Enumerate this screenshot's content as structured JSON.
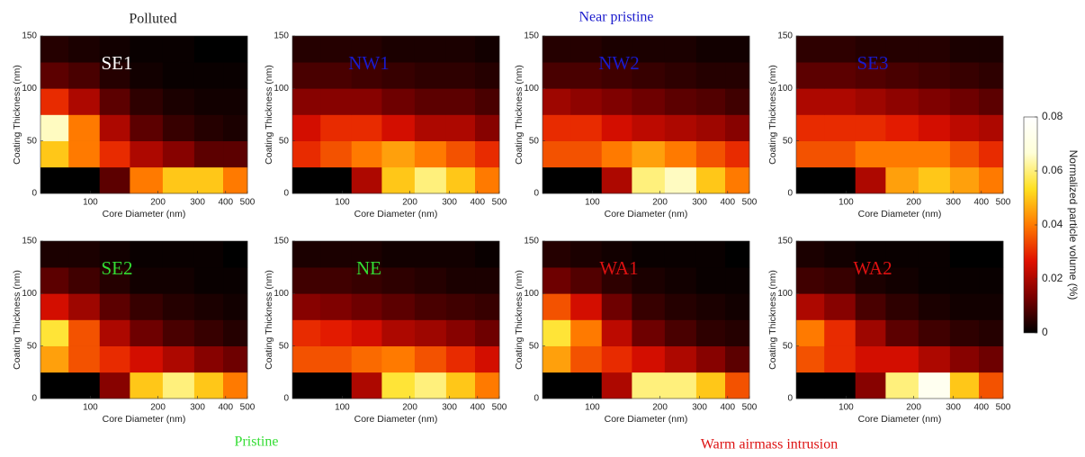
{
  "annotations": [
    {
      "text": "Polluted",
      "color": "#222222"
    },
    {
      "text": "Near pristine",
      "color": "#1a1acc"
    },
    {
      "text": "Pristine",
      "color": "#33dd33"
    },
    {
      "text": "Warm airmass intrusion",
      "color": "#dd1111"
    }
  ],
  "colorbar": {
    "label": "Normalized particle volume (%)",
    "lim": [
      0,
      0.08
    ],
    "ticks": [
      0,
      0.02,
      0.04,
      0.06,
      0.08
    ],
    "colormap": [
      "#000000",
      "#7a0000",
      "#e01000",
      "#ff7a00",
      "#ffe020",
      "#ffffd8",
      "#ffffff"
    ]
  },
  "chart_data": [
    {
      "type": "heatmap",
      "title": "SE1",
      "title_color": "#ffffff",
      "xlabel": "Core Diameter (nm)",
      "ylabel": "Coating Thickness (nm)",
      "xscale": "log",
      "xlim": [
        60,
        500
      ],
      "ylim": [
        0,
        150
      ],
      "xticks": [
        100,
        200,
        300,
        400,
        500
      ],
      "yticks": [
        0,
        50,
        100,
        150
      ],
      "x_edges": [
        60,
        80,
        110,
        150,
        210,
        290,
        390,
        500
      ],
      "y_edges": [
        0,
        25,
        50,
        75,
        100,
        125,
        150
      ],
      "z": [
        [
          0,
          0,
          0.01,
          0.04,
          0.05,
          0.05,
          0.04
        ],
        [
          0.05,
          0.04,
          0.03,
          0.02,
          0.015,
          0.01,
          0.01
        ],
        [
          0.065,
          0.04,
          0.02,
          0.01,
          0.006,
          0.004,
          0.003
        ],
        [
          0.03,
          0.02,
          0.01,
          0.005,
          0.003,
          0.002,
          0.002
        ],
        [
          0.01,
          0.008,
          0.004,
          0.002,
          0.001,
          0.001,
          0.001
        ],
        [
          0.004,
          0.003,
          0.002,
          0.001,
          0.001,
          0,
          0
        ]
      ]
    },
    {
      "type": "heatmap",
      "title": "NW1",
      "title_color": "#1a1acc",
      "xlabel": "Core Diameter (nm)",
      "ylabel": "Coating Thickness (nm)",
      "xscale": "log",
      "xlim": [
        60,
        500
      ],
      "ylim": [
        0,
        150
      ],
      "xticks": [
        100,
        200,
        300,
        400,
        500
      ],
      "yticks": [
        0,
        50,
        100,
        150
      ],
      "x_edges": [
        60,
        80,
        110,
        150,
        210,
        290,
        390,
        500
      ],
      "y_edges": [
        0,
        25,
        50,
        75,
        100,
        125,
        150
      ],
      "z": [
        [
          0,
          0,
          0.02,
          0.05,
          0.06,
          0.05,
          0.04
        ],
        [
          0.03,
          0.035,
          0.04,
          0.045,
          0.04,
          0.035,
          0.03
        ],
        [
          0.025,
          0.03,
          0.03,
          0.025,
          0.02,
          0.02,
          0.015
        ],
        [
          0.015,
          0.015,
          0.015,
          0.012,
          0.01,
          0.01,
          0.008
        ],
        [
          0.008,
          0.008,
          0.007,
          0.006,
          0.005,
          0.005,
          0.004
        ],
        [
          0.004,
          0.004,
          0.004,
          0.003,
          0.003,
          0.003,
          0.002
        ]
      ]
    },
    {
      "type": "heatmap",
      "title": "NW2",
      "title_color": "#1a1acc",
      "xlabel": "Core Diameter (nm)",
      "ylabel": "Coating Thickness (nm)",
      "xscale": "log",
      "xlim": [
        60,
        500
      ],
      "ylim": [
        0,
        150
      ],
      "xticks": [
        100,
        200,
        300,
        400,
        500
      ],
      "yticks": [
        0,
        50,
        100,
        150
      ],
      "x_edges": [
        60,
        80,
        110,
        150,
        210,
        290,
        390,
        500
      ],
      "y_edges": [
        0,
        25,
        50,
        75,
        100,
        125,
        150
      ],
      "z": [
        [
          0,
          0,
          0.02,
          0.06,
          0.065,
          0.05,
          0.04
        ],
        [
          0.035,
          0.035,
          0.04,
          0.045,
          0.04,
          0.035,
          0.03
        ],
        [
          0.03,
          0.03,
          0.025,
          0.022,
          0.02,
          0.018,
          0.015
        ],
        [
          0.018,
          0.016,
          0.014,
          0.012,
          0.01,
          0.009,
          0.007
        ],
        [
          0.008,
          0.008,
          0.007,
          0.006,
          0.005,
          0.004,
          0.004
        ],
        [
          0.004,
          0.004,
          0.003,
          0.003,
          0.003,
          0.002,
          0.002
        ]
      ]
    },
    {
      "type": "heatmap",
      "title": "SE3",
      "title_color": "#1a1acc",
      "xlabel": "Core Diameter (nm)",
      "ylabel": "Coating Thickness (nm)",
      "xscale": "log",
      "xlim": [
        60,
        500
      ],
      "ylim": [
        0,
        150
      ],
      "xticks": [
        100,
        200,
        300,
        400,
        500
      ],
      "yticks": [
        0,
        50,
        100,
        150
      ],
      "x_edges": [
        60,
        80,
        110,
        150,
        210,
        290,
        390,
        500
      ],
      "y_edges": [
        0,
        25,
        50,
        75,
        100,
        125,
        150
      ],
      "z": [
        [
          0,
          0,
          0.02,
          0.045,
          0.05,
          0.045,
          0.04
        ],
        [
          0.035,
          0.035,
          0.04,
          0.04,
          0.04,
          0.035,
          0.03
        ],
        [
          0.03,
          0.03,
          0.03,
          0.028,
          0.025,
          0.022,
          0.02
        ],
        [
          0.02,
          0.02,
          0.018,
          0.016,
          0.014,
          0.012,
          0.01
        ],
        [
          0.01,
          0.01,
          0.009,
          0.008,
          0.007,
          0.006,
          0.005
        ],
        [
          0.005,
          0.005,
          0.004,
          0.004,
          0.004,
          0.003,
          0.003
        ]
      ]
    },
    {
      "type": "heatmap",
      "title": "SE2",
      "title_color": "#33dd33",
      "xlabel": "Core Diameter (nm)",
      "ylabel": "Coating Thickness (nm)",
      "xscale": "log",
      "xlim": [
        60,
        500
      ],
      "ylim": [
        0,
        150
      ],
      "xticks": [
        100,
        200,
        300,
        400,
        500
      ],
      "yticks": [
        0,
        50,
        100,
        150
      ],
      "x_edges": [
        60,
        80,
        110,
        150,
        210,
        290,
        390,
        500
      ],
      "y_edges": [
        0,
        25,
        50,
        75,
        100,
        125,
        150
      ],
      "z": [
        [
          0,
          0,
          0.015,
          0.05,
          0.06,
          0.05,
          0.04
        ],
        [
          0.045,
          0.035,
          0.03,
          0.025,
          0.02,
          0.015,
          0.012
        ],
        [
          0.055,
          0.035,
          0.02,
          0.012,
          0.008,
          0.006,
          0.004
        ],
        [
          0.025,
          0.018,
          0.01,
          0.006,
          0.004,
          0.003,
          0.002
        ],
        [
          0.01,
          0.007,
          0.004,
          0.002,
          0.002,
          0.001,
          0.001
        ],
        [
          0.003,
          0.003,
          0.002,
          0.001,
          0.001,
          0.001,
          0
        ]
      ]
    },
    {
      "type": "heatmap",
      "title": "NE",
      "title_color": "#33dd33",
      "xlabel": "Core Diameter (nm)",
      "ylabel": "Coating Thickness (nm)",
      "xscale": "log",
      "xlim": [
        60,
        500
      ],
      "ylim": [
        0,
        150
      ],
      "xticks": [
        100,
        200,
        300,
        400,
        500
      ],
      "yticks": [
        0,
        50,
        100,
        150
      ],
      "x_edges": [
        60,
        80,
        110,
        150,
        210,
        290,
        390,
        500
      ],
      "y_edges": [
        0,
        25,
        50,
        75,
        100,
        125,
        150
      ],
      "z": [
        [
          0,
          0,
          0.02,
          0.055,
          0.06,
          0.05,
          0.04
        ],
        [
          0.035,
          0.035,
          0.038,
          0.04,
          0.035,
          0.03,
          0.025
        ],
        [
          0.03,
          0.028,
          0.025,
          0.02,
          0.018,
          0.015,
          0.012
        ],
        [
          0.015,
          0.014,
          0.012,
          0.01,
          0.008,
          0.007,
          0.006
        ],
        [
          0.007,
          0.007,
          0.006,
          0.005,
          0.004,
          0.003,
          0.003
        ],
        [
          0.003,
          0.003,
          0.003,
          0.002,
          0.002,
          0.002,
          0.001
        ]
      ]
    },
    {
      "type": "heatmap",
      "title": "WA1",
      "title_color": "#dd1111",
      "xlabel": "Core Diameter (nm)",
      "ylabel": "Coating Thickness (nm)",
      "xscale": "log",
      "xlim": [
        60,
        500
      ],
      "ylim": [
        0,
        150
      ],
      "xticks": [
        100,
        200,
        300,
        400,
        500
      ],
      "yticks": [
        0,
        50,
        100,
        150
      ],
      "x_edges": [
        60,
        80,
        110,
        150,
        210,
        290,
        390,
        500
      ],
      "y_edges": [
        0,
        25,
        50,
        75,
        100,
        125,
        150
      ],
      "z": [
        [
          0,
          0,
          0.02,
          0.06,
          0.06,
          0.05,
          0.035
        ],
        [
          0.045,
          0.035,
          0.03,
          0.025,
          0.02,
          0.015,
          0.01
        ],
        [
          0.055,
          0.04,
          0.022,
          0.012,
          0.008,
          0.005,
          0.004
        ],
        [
          0.035,
          0.025,
          0.012,
          0.006,
          0.004,
          0.003,
          0.002
        ],
        [
          0.012,
          0.009,
          0.005,
          0.003,
          0.002,
          0.001,
          0.001
        ],
        [
          0.004,
          0.003,
          0.002,
          0.001,
          0.001,
          0.001,
          0
        ]
      ]
    },
    {
      "type": "heatmap",
      "title": "WA2",
      "title_color": "#dd1111",
      "xlabel": "Core Diameter (nm)",
      "ylabel": "Coating Thickness (nm)",
      "xscale": "log",
      "xlim": [
        60,
        500
      ],
      "ylim": [
        0,
        150
      ],
      "xticks": [
        100,
        200,
        300,
        400,
        500
      ],
      "yticks": [
        0,
        50,
        100,
        150
      ],
      "x_edges": [
        60,
        80,
        110,
        150,
        210,
        290,
        390,
        500
      ],
      "y_edges": [
        0,
        25,
        50,
        75,
        100,
        125,
        150
      ],
      "z": [
        [
          0,
          0,
          0.015,
          0.06,
          0.075,
          0.05,
          0.035
        ],
        [
          0.035,
          0.03,
          0.025,
          0.025,
          0.02,
          0.015,
          0.012
        ],
        [
          0.04,
          0.03,
          0.018,
          0.01,
          0.007,
          0.005,
          0.004
        ],
        [
          0.02,
          0.015,
          0.008,
          0.005,
          0.003,
          0.002,
          0.002
        ],
        [
          0.007,
          0.006,
          0.003,
          0.002,
          0.001,
          0.001,
          0.001
        ],
        [
          0.003,
          0.002,
          0.001,
          0.001,
          0.001,
          0,
          0
        ]
      ]
    }
  ]
}
